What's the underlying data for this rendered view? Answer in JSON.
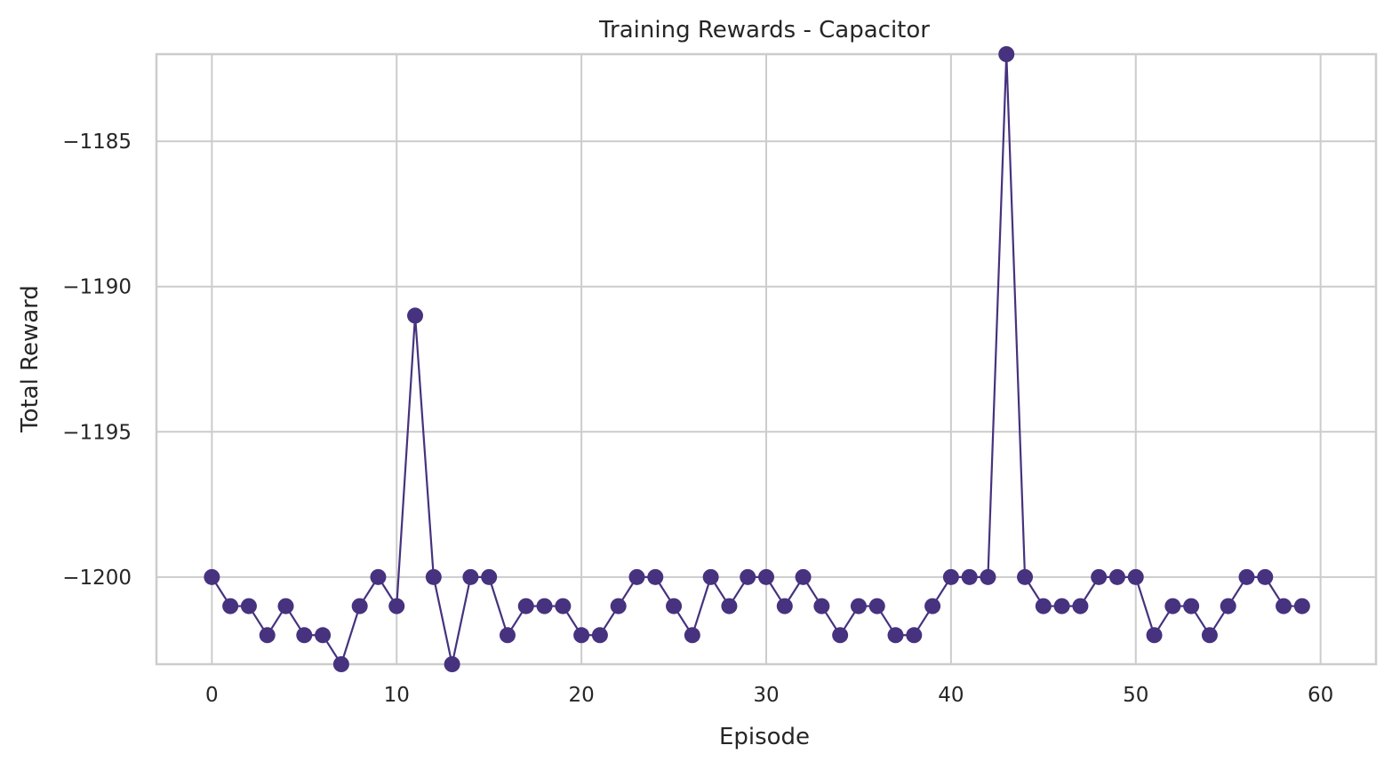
{
  "chart_data": {
    "type": "line",
    "title": "Training Rewards - Capacitor",
    "xlabel": "Episode",
    "ylabel": "Total Reward",
    "xlim": [
      -3,
      63
    ],
    "ylim": [
      -1203.0,
      -1182.0
    ],
    "xticks": [
      0,
      10,
      20,
      30,
      40,
      50,
      60
    ],
    "yticks": [
      -1200,
      -1195,
      -1190,
      -1185
    ],
    "ytick_labels": [
      "−1200",
      "−1195",
      "−1190",
      "−1185"
    ],
    "grid": true,
    "marker": "circle",
    "color": "#46327e",
    "x": [
      0,
      1,
      2,
      3,
      4,
      5,
      6,
      7,
      8,
      9,
      10,
      11,
      12,
      13,
      14,
      15,
      16,
      17,
      18,
      19,
      20,
      21,
      22,
      23,
      24,
      25,
      26,
      27,
      28,
      29,
      30,
      31,
      32,
      33,
      34,
      35,
      36,
      37,
      38,
      39,
      40,
      41,
      42,
      43,
      44,
      45,
      46,
      47,
      48,
      49,
      50,
      51,
      52,
      53,
      54,
      55,
      56,
      57,
      58,
      59
    ],
    "series": [
      {
        "values": [
          -1200,
          -1201,
          -1201,
          -1202,
          -1201,
          -1202,
          -1202,
          -1203,
          -1201,
          -1200,
          -1201,
          -1191,
          -1200,
          -1203,
          -1200,
          -1200,
          -1202,
          -1201,
          -1201,
          -1201,
          -1202,
          -1202,
          -1201,
          -1200,
          -1200,
          -1201,
          -1202,
          -1200,
          -1201,
          -1200,
          -1200,
          -1201,
          -1200,
          -1201,
          -1202,
          -1201,
          -1201,
          -1202,
          -1202,
          -1201,
          -1200,
          -1200,
          -1200,
          -1182,
          -1200,
          -1201,
          -1201,
          -1201,
          -1200,
          -1200,
          -1200,
          -1202,
          -1201,
          -1201,
          -1202,
          -1201,
          -1200,
          -1200,
          -1201,
          -1201
        ]
      }
    ]
  }
}
